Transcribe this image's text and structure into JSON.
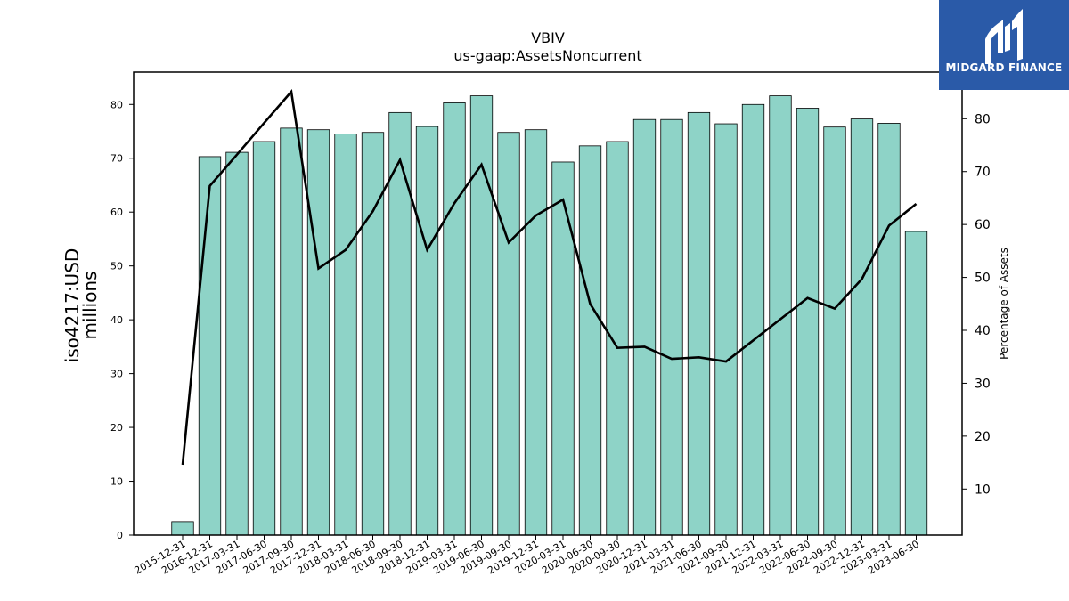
{
  "title": "VBIV",
  "subtitle": "us-gaap:AssetsNoncurrent",
  "logo": {
    "text": "MIDGARD FINANCE",
    "icon": "midgard-logo-icon",
    "background": "#2a5aa8"
  },
  "chart_data": {
    "type": "bar",
    "categories": [
      "2015-12-31",
      "2016-12-31",
      "2017-03-31",
      "2017-06-30",
      "2017-09-30",
      "2017-12-31",
      "2018-03-31",
      "2018-06-30",
      "2018-09-30",
      "2018-12-31",
      "2019-03-31",
      "2019-06-30",
      "2019-09-30",
      "2019-12-31",
      "2020-03-31",
      "2020-06-30",
      "2020-09-30",
      "2020-12-31",
      "2021-03-31",
      "2021-06-30",
      "2021-09-30",
      "2021-12-31",
      "2022-03-31",
      "2022-06-30",
      "2022-09-30",
      "2022-12-31",
      "2023-03-31",
      "2023-06-30"
    ],
    "series": [
      {
        "axis": "left",
        "type": "bar",
        "color": "#8ed3c7",
        "values": [
          2.5,
          70.3,
          71.1,
          73.1,
          75.6,
          75.3,
          74.5,
          74.8,
          78.5,
          75.9,
          80.3,
          81.6,
          74.8,
          75.3,
          69.3,
          72.3,
          73.1,
          77.2,
          77.2,
          78.5,
          76.4,
          80.0,
          81.6,
          79.3,
          75.8,
          77.3,
          76.5,
          56.4
        ]
      },
      {
        "axis": "right",
        "type": "line",
        "color": "#000000",
        "values": [
          14.6,
          67.3,
          73.2,
          79.2,
          85.1,
          51.7,
          55.2,
          62.5,
          72.2,
          55.2,
          64.0,
          71.3,
          56.6,
          61.7,
          64.7,
          45.0,
          36.7,
          36.9,
          34.6,
          34.9,
          34.1,
          38.1,
          42.1,
          46.1,
          44.1,
          49.7,
          59.8,
          63.9
        ]
      }
    ],
    "ylabel": "iso4217:USD\nmillions",
    "ylabel_lines": [
      "iso4217:USD",
      "millions"
    ],
    "y2label": "Percentage of Assets",
    "ylim": [
      0,
      86
    ],
    "y_ticks": [
      0,
      10,
      20,
      30,
      40,
      50,
      60,
      70,
      80
    ],
    "y2lim": [
      1.3,
      88.8
    ],
    "y2_ticks": [
      10,
      20,
      30,
      40,
      50,
      60,
      70,
      80
    ],
    "grid": false,
    "legend": "none"
  }
}
